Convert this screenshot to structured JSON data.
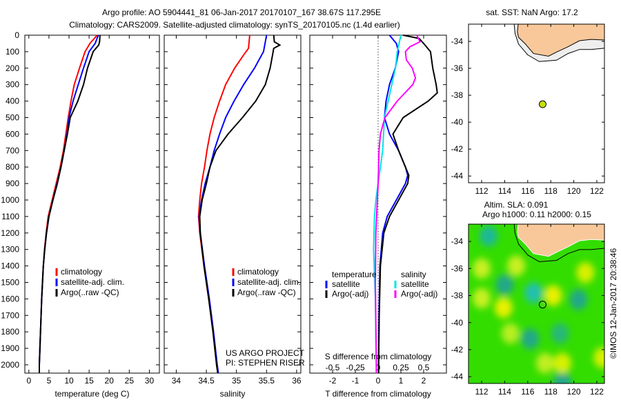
{
  "title_line1": "Argo profile: AO 5904441_81 06-Jan-2017 20170107_167 38.67S 117.295E",
  "title_line2": "Climatology: CARS2009. Satellite-adjusted climatology: synTS_20170105.nc (1.4d earlier)",
  "depth_ticks": [
    0,
    100,
    200,
    300,
    400,
    500,
    600,
    700,
    800,
    900,
    1000,
    1100,
    1200,
    1300,
    1400,
    1500,
    1600,
    1700,
    1800,
    1900,
    2000
  ],
  "colors": {
    "climatology": "#ff0000",
    "satellite": "#0000ff",
    "argo": "#000000",
    "sal_satellite": "#00e5e5",
    "sal_argo": "#ff00ff",
    "land": "#f8c89a",
    "sla_base": "#33dd00"
  },
  "chart_data": [
    {
      "type": "line",
      "id": "temperature",
      "xlabel": "temperature (deg C)",
      "ylabel": "depth",
      "xlim": [
        -1,
        32.5
      ],
      "ylim": [
        2050,
        0
      ],
      "xticks": [
        0,
        5,
        10,
        15,
        20,
        25,
        30
      ],
      "legend": [
        "climatology",
        "satellite-adj. clim.",
        "Argo(..raw -QC)"
      ],
      "legend_placement": "bottom-center",
      "series": [
        {
          "name": "climatology",
          "color": "#ff0000",
          "points": [
            [
              0,
              17
            ],
            [
              50,
              15.2
            ],
            [
              100,
              14
            ],
            [
              200,
              12.6
            ],
            [
              300,
              11.3
            ],
            [
              400,
              10.5
            ],
            [
              500,
              9.8
            ],
            [
              600,
              9.2
            ],
            [
              700,
              8.6
            ],
            [
              800,
              7.8
            ],
            [
              900,
              6.8
            ],
            [
              1000,
              5.8
            ],
            [
              1100,
              4.8
            ],
            [
              1200,
              4.3
            ],
            [
              1300,
              3.9
            ],
            [
              1400,
              3.6
            ],
            [
              1600,
              3.2
            ],
            [
              1800,
              2.9
            ],
            [
              2000,
              2.6
            ],
            [
              2050,
              2.6
            ]
          ]
        },
        {
          "name": "satellite-adj. clim.",
          "color": "#0000ff",
          "points": [
            [
              0,
              17.3
            ],
            [
              50,
              16.5
            ],
            [
              100,
              15
            ],
            [
              200,
              13.6
            ],
            [
              300,
              12.3
            ],
            [
              400,
              11
            ],
            [
              500,
              10
            ],
            [
              600,
              9.5
            ],
            [
              700,
              8.8
            ],
            [
              800,
              8
            ],
            [
              900,
              7
            ],
            [
              1000,
              6
            ],
            [
              1100,
              5
            ],
            [
              1200,
              4.4
            ],
            [
              1300,
              3.95
            ],
            [
              1400,
              3.6
            ],
            [
              1600,
              3.2
            ],
            [
              1800,
              2.9
            ],
            [
              2000,
              2.6
            ],
            [
              2050,
              2.6
            ]
          ]
        },
        {
          "name": "Argo(..raw -QC)",
          "color": "#000000",
          "points": [
            [
              0,
              17.7
            ],
            [
              40,
              17.6
            ],
            [
              60,
              17.4
            ],
            [
              100,
              16
            ],
            [
              200,
              14.6
            ],
            [
              300,
              13.6
            ],
            [
              400,
              12.2
            ],
            [
              500,
              10.3
            ],
            [
              600,
              9.6
            ],
            [
              700,
              8.8
            ],
            [
              800,
              8
            ],
            [
              900,
              7.1
            ],
            [
              1000,
              6
            ],
            [
              1100,
              5
            ],
            [
              1200,
              4.4
            ],
            [
              1300,
              3.95
            ],
            [
              1400,
              3.6
            ],
            [
              1600,
              3.2
            ],
            [
              1800,
              2.9
            ],
            [
              2000,
              2.6
            ],
            [
              2050,
              2.6
            ]
          ]
        }
      ]
    },
    {
      "type": "line",
      "id": "salinity",
      "xlabel": "salinity",
      "ylabel": "depth",
      "xlim": [
        33.8,
        36.07
      ],
      "ylim": [
        2050,
        0
      ],
      "xticks": [
        34,
        34.5,
        35,
        35.5,
        36
      ],
      "legend": [
        "climatology",
        "satellite-adj. clim.",
        "Argo(..raw -QC)"
      ],
      "legend_placement": "bottom-right",
      "annotations": [
        "US ARGO PROJECT",
        "PI: STEPHEN RISER"
      ],
      "series": [
        {
          "name": "climatology",
          "color": "#ff0000",
          "points": [
            [
              0,
              35.22
            ],
            [
              80,
              35.2
            ],
            [
              120,
              35.12
            ],
            [
              200,
              34.97
            ],
            [
              300,
              34.82
            ],
            [
              400,
              34.72
            ],
            [
              500,
              34.63
            ],
            [
              600,
              34.56
            ],
            [
              700,
              34.51
            ],
            [
              800,
              34.47
            ],
            [
              900,
              34.42
            ],
            [
              1000,
              34.39
            ],
            [
              1100,
              34.37
            ],
            [
              1200,
              34.39
            ],
            [
              1400,
              34.46
            ],
            [
              1600,
              34.54
            ],
            [
              1800,
              34.61
            ],
            [
              2000,
              34.67
            ],
            [
              2050,
              34.69
            ]
          ]
        },
        {
          "name": "satellite-adj. clim.",
          "color": "#0000ff",
          "points": [
            [
              0,
              35.5
            ],
            [
              100,
              35.45
            ],
            [
              200,
              35.3
            ],
            [
              300,
              35.12
            ],
            [
              400,
              34.96
            ],
            [
              500,
              34.82
            ],
            [
              600,
              34.72
            ],
            [
              700,
              34.63
            ],
            [
              800,
              34.56
            ],
            [
              900,
              34.48
            ],
            [
              1000,
              34.42
            ],
            [
              1100,
              34.38
            ],
            [
              1200,
              34.4
            ],
            [
              1400,
              34.47
            ],
            [
              1600,
              34.55
            ],
            [
              1800,
              34.62
            ],
            [
              2000,
              34.68
            ],
            [
              2050,
              34.7
            ]
          ]
        },
        {
          "name": "Argo(..raw -QC)",
          "color": "#000000",
          "points": [
            [
              0,
              35.62
            ],
            [
              40,
              35.63
            ],
            [
              60,
              35.72
            ],
            [
              80,
              35.62
            ],
            [
              120,
              35.6
            ],
            [
              200,
              35.56
            ],
            [
              300,
              35.48
            ],
            [
              400,
              35.32
            ],
            [
              500,
              35.1
            ],
            [
              600,
              34.86
            ],
            [
              700,
              34.66
            ],
            [
              800,
              34.56
            ],
            [
              900,
              34.5
            ],
            [
              1000,
              34.43
            ],
            [
              1100,
              34.39
            ],
            [
              1200,
              34.4
            ],
            [
              1400,
              34.46
            ],
            [
              1600,
              34.54
            ],
            [
              1800,
              34.61
            ],
            [
              2000,
              34.67
            ],
            [
              2050,
              34.69
            ]
          ]
        }
      ]
    },
    {
      "type": "line",
      "id": "differences",
      "xlabel": "T difference from climatology",
      "x2label": "S difference from climatology",
      "xlim": [
        -3,
        3
      ],
      "x2lim": [
        -1.5,
        1.5
      ],
      "ylim": [
        2050,
        0
      ],
      "xticks": [
        -2,
        -1,
        0,
        1,
        2
      ],
      "x2ticks": [
        -0.5,
        -0.25,
        0,
        0.25,
        0.5
      ],
      "legend_headers": [
        "temperature",
        "salinity"
      ],
      "legend": [
        "satellite",
        "Argo(-adj)",
        "satellite",
        "Argo(-adj)"
      ],
      "legend_placement": "bottom-center",
      "series": [
        {
          "name": "T satellite",
          "axis": "T",
          "color": "#0000ff",
          "points": [
            [
              0,
              0.5
            ],
            [
              50,
              0.8
            ],
            [
              100,
              0.9
            ],
            [
              200,
              0.75
            ],
            [
              300,
              0.5
            ],
            [
              400,
              0.35
            ],
            [
              500,
              0.28
            ],
            [
              600,
              0.5
            ],
            [
              700,
              0.9
            ],
            [
              800,
              1.2
            ],
            [
              850,
              1.3
            ],
            [
              900,
              1.2
            ],
            [
              1000,
              0.8
            ],
            [
              1100,
              0.4
            ],
            [
              1200,
              0.2
            ],
            [
              1400,
              0.08
            ],
            [
              1700,
              0.04
            ],
            [
              2000,
              0.02
            ],
            [
              2050,
              0.02
            ]
          ]
        },
        {
          "name": "T Argo(-adj)",
          "axis": "T",
          "color": "#000000",
          "points": [
            [
              0,
              1.1
            ],
            [
              20,
              1.8
            ],
            [
              50,
              2
            ],
            [
              100,
              2.3
            ],
            [
              200,
              2.4
            ],
            [
              300,
              2.55
            ],
            [
              350,
              2.6
            ],
            [
              400,
              2.2
            ],
            [
              500,
              1.1
            ],
            [
              600,
              0.65
            ],
            [
              700,
              0.9
            ],
            [
              800,
              1.2
            ],
            [
              850,
              1.35
            ],
            [
              900,
              1.3
            ],
            [
              1000,
              0.9
            ],
            [
              1100,
              0.5
            ],
            [
              1200,
              0.25
            ],
            [
              1400,
              0.1
            ],
            [
              1700,
              0.05
            ],
            [
              2000,
              0.02
            ],
            [
              2050,
              0.02
            ]
          ]
        },
        {
          "name": "S satellite",
          "axis": "S",
          "color": "#00e5e5",
          "points": [
            [
              0,
              0.5
            ],
            [
              100,
              0.42
            ],
            [
              200,
              0.38
            ],
            [
              300,
              0.3
            ],
            [
              400,
              0.22
            ],
            [
              500,
              0.14
            ],
            [
              600,
              0.12
            ],
            [
              700,
              0.1
            ],
            [
              800,
              0.05
            ],
            [
              900,
              0.0
            ],
            [
              1000,
              -0.05
            ],
            [
              1100,
              -0.08
            ],
            [
              1300,
              -0.1
            ],
            [
              1600,
              -0.06
            ],
            [
              2000,
              -0.04
            ],
            [
              2050,
              -0.04
            ]
          ]
        },
        {
          "name": "S Argo(-adj)",
          "axis": "S",
          "color": "#ff00ff",
          "points": [
            [
              0,
              0.85
            ],
            [
              40,
              0.92
            ],
            [
              70,
              0.7
            ],
            [
              100,
              0.6
            ],
            [
              150,
              0.62
            ],
            [
              200,
              0.75
            ],
            [
              260,
              0.82
            ],
            [
              300,
              0.76
            ],
            [
              400,
              0.42
            ],
            [
              500,
              0.15
            ],
            [
              600,
              0.05
            ],
            [
              700,
              0.02
            ],
            [
              900,
              0.0
            ],
            [
              1200,
              -0.05
            ],
            [
              1500,
              -0.06
            ],
            [
              2000,
              -0.04
            ],
            [
              2050,
              -0.04
            ]
          ]
        }
      ]
    }
  ],
  "map_sst": {
    "title": "sat. SST: NaN Argo: 17.2",
    "lon_ticks": [
      112,
      114,
      116,
      118,
      120,
      122
    ],
    "lat_ticks": [
      -34,
      -36,
      -38,
      -40,
      -42,
      -44
    ],
    "lon_range": [
      110.86,
      122.66
    ],
    "lat_range": [
      -44.5,
      -32.72
    ],
    "argo_lon": 117.295,
    "argo_lat": -38.67
  },
  "map_sla": {
    "title_line1": "Altim. SLA: 0.091",
    "title_line2": "Argo h1000: 0.11 h2000: 0.15",
    "lon_ticks": [
      112,
      114,
      116,
      118,
      120,
      122
    ],
    "lat_ticks": [
      -34,
      -36,
      -38,
      -40,
      -42,
      -44
    ],
    "lon_range": [
      110.86,
      122.66
    ],
    "lat_range": [
      -44.5,
      -32.72
    ],
    "argo_lon": 117.295,
    "argo_lat": -38.67
  },
  "credit": "©IMOS 12-Jan-2017 20:38:46"
}
